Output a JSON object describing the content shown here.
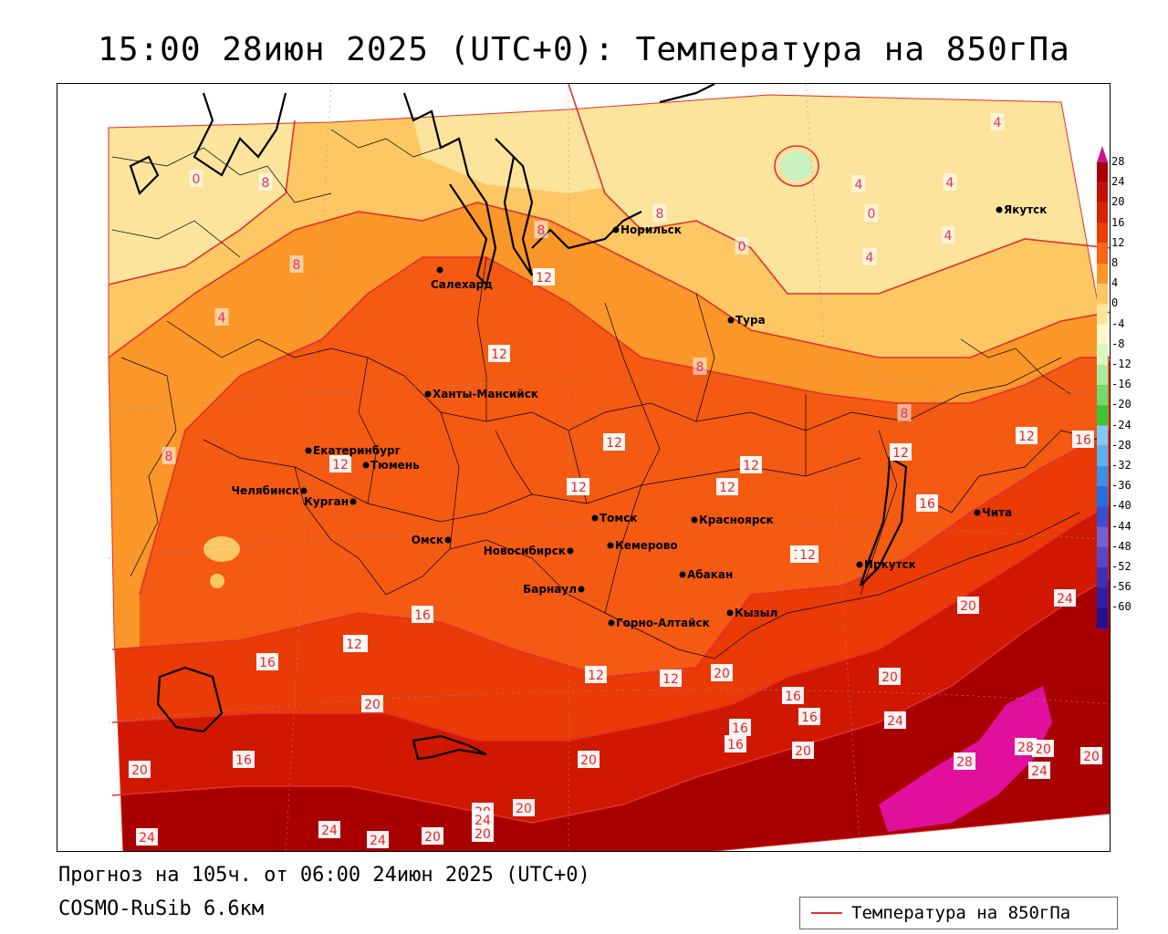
{
  "title": "15:00 28июн 2025 (UTC+0): Температура на 850гПа",
  "footer": {
    "forecast": "Прогноз на 105ч. от 06:00 24июн 2025 (UTC+0)",
    "model": "COSMO-RuSib 6.6км"
  },
  "legend": {
    "label": "Температура на 850гПа",
    "line_color": "#e03030"
  },
  "colorbar": {
    "ticks": [
      "28",
      "24",
      "20",
      "16",
      "12",
      "8",
      "4",
      "0",
      "-4",
      "-8",
      "-12",
      "-16",
      "-20",
      "-24",
      "-28",
      "-32",
      "-36",
      "-40",
      "-44",
      "-48",
      "-52",
      "-56",
      "-60"
    ],
    "colors": [
      "#a80000",
      "#c01000",
      "#d82000",
      "#ec3c00",
      "#f86414",
      "#fb9628",
      "#fdc864",
      "#fde49c",
      "#fff8c8",
      "#d8f8c0",
      "#a8eca0",
      "#70dc70",
      "#38c838",
      "#80c8f8",
      "#58b0f0",
      "#3890e8",
      "#2070e0",
      "#3850d0",
      "#7060d8",
      "#5848c8",
      "#4030b8",
      "#3020a8",
      "#201090"
    ]
  },
  "cities": [
    {
      "name": "Норильск"
    },
    {
      "name": "Якутск"
    },
    {
      "name": "Салехард"
    },
    {
      "name": "Тура"
    },
    {
      "name": "Ханты-Мансийск"
    },
    {
      "name": "Екатеринбург"
    },
    {
      "name": "Тюмень"
    },
    {
      "name": "Челябинск"
    },
    {
      "name": "Курган"
    },
    {
      "name": "Омск"
    },
    {
      "name": "Новосибирск"
    },
    {
      "name": "Томск"
    },
    {
      "name": "Кемерово"
    },
    {
      "name": "Красноярск"
    },
    {
      "name": "Барнаул"
    },
    {
      "name": "Абакан"
    },
    {
      "name": "Кызыл"
    },
    {
      "name": "Горно-Алтайск"
    },
    {
      "name": "Иркутск"
    },
    {
      "name": "Чита"
    }
  ],
  "contour_labels": [
    "0",
    "8",
    "4",
    "8",
    "4",
    "0",
    "0",
    "4",
    "4",
    "4",
    "8",
    "4",
    "8",
    "12",
    "12",
    "8",
    "12",
    "8",
    "12",
    "8",
    "12",
    "12",
    "12",
    "16",
    "12",
    "12",
    "16",
    "20",
    "12",
    "12",
    "16",
    "16",
    "20",
    "24",
    "12",
    "12",
    "12",
    "16",
    "16",
    "12",
    "20",
    "20",
    "20",
    "20",
    "16",
    "16",
    "20",
    "24",
    "20",
    "16",
    "20",
    "20",
    "28",
    "28",
    "24",
    "20",
    "24",
    "20",
    "24",
    "24",
    "20",
    "24",
    "20"
  ]
}
